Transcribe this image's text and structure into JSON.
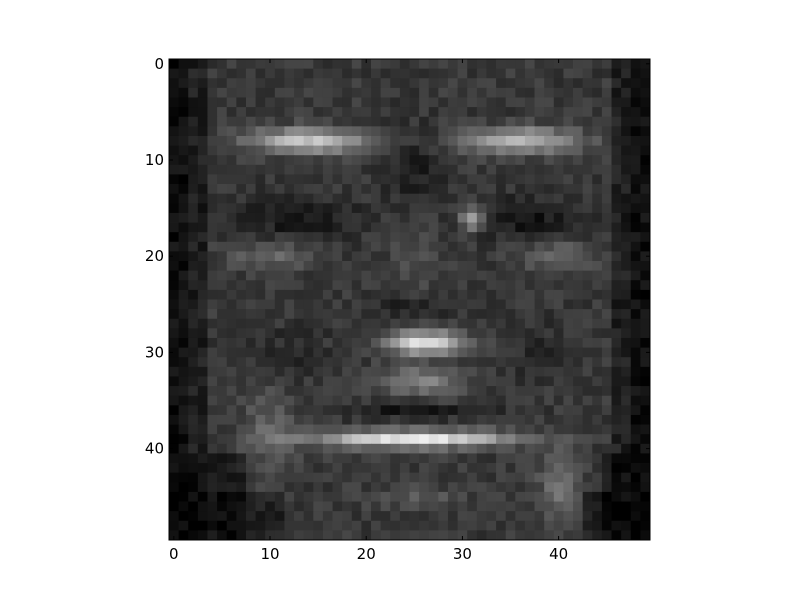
{
  "chart_data": {
    "type": "heatmap",
    "title": "",
    "xlabel": "",
    "ylabel": "",
    "colormap": "gray",
    "grid": false,
    "xlim": [
      -0.5,
      49.5
    ],
    "ylim": [
      49.5,
      -0.5
    ],
    "x_ticks": [
      0,
      10,
      20,
      30,
      40
    ],
    "y_ticks": [
      0,
      10,
      20,
      30,
      40
    ],
    "x_tick_labels": [
      "0",
      "10",
      "20",
      "30",
      "40"
    ],
    "y_tick_labels": [
      "0",
      "10",
      "20",
      "30",
      "40"
    ],
    "image_shape": [
      50,
      50
    ]
  },
  "colors": {
    "background": "#ffffff",
    "axes_frame": "#000000",
    "tick_text": "#000000"
  }
}
